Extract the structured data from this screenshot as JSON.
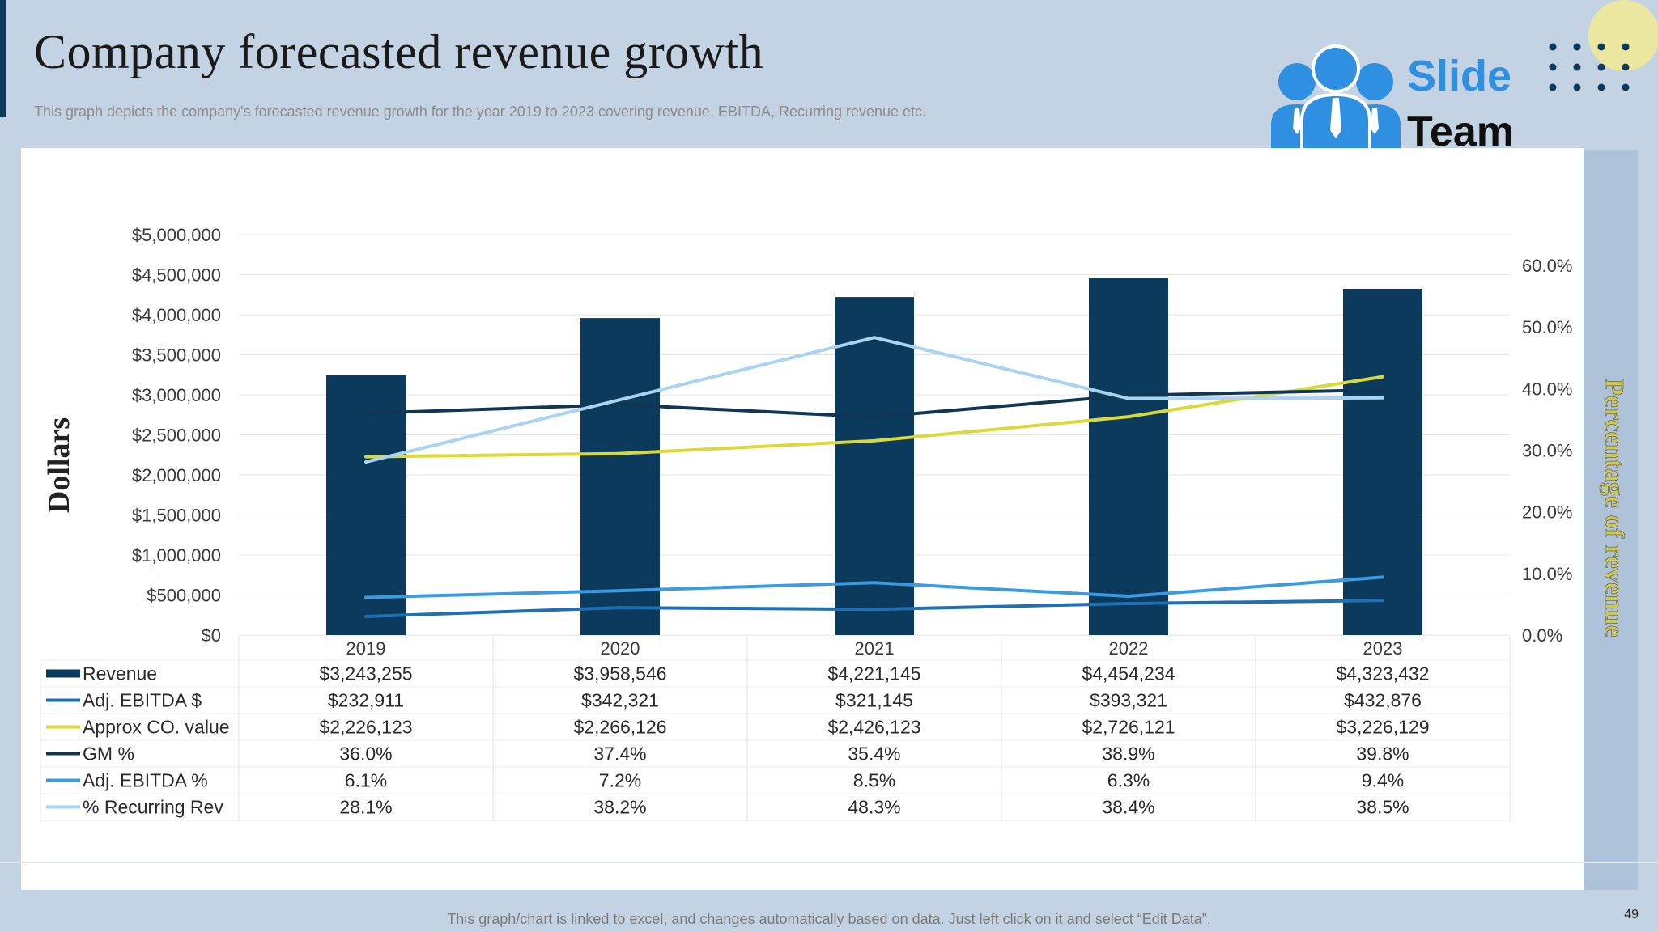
{
  "slide": {
    "title": "Company forecasted revenue growth",
    "subtitle": "This graph depicts the company's forecasted revenue growth for the year 2019 to  2023 covering revenue, EBITDA,  Recurring revenue etc.",
    "footer_note": "This graph/chart is linked to excel,  and changes automatically based on data. Just left click on it and select “Edit Data”.",
    "page_number": "49"
  },
  "logo": {
    "word1": "Slide",
    "word2": "Team"
  },
  "colors": {
    "background": "#c4d3e4",
    "revenue": "#0b3a5c",
    "adj_ebitda_dollar": "#1f6fb2",
    "approx_co_value": "#d9d93a",
    "gm_pct": "#0f3654",
    "adj_ebitda_pct": "#3b9ae0",
    "recurring_rev": "#a9d3f0"
  },
  "chart_data": {
    "type": "bar+line",
    "categories": [
      "2019",
      "2020",
      "2021",
      "2022",
      "2023"
    ],
    "y_left": {
      "label": "Dollars",
      "range": [
        0,
        5000000
      ],
      "ticks": [
        "$0",
        "$500,000",
        "$1,000,000",
        "$1,500,000",
        "$2,000,000",
        "$2,500,000",
        "$3,000,000",
        "$3,500,000",
        "$4,000,000",
        "$4,500,000",
        "$5,000,000"
      ]
    },
    "y_right": {
      "label": "Percentage of revenue",
      "range": [
        0,
        0.65
      ],
      "ticks": [
        "0.0%",
        "10.0%",
        "20.0%",
        "30.0%",
        "40.0%",
        "50.0%",
        "60.0%"
      ]
    },
    "series": [
      {
        "name": "Revenue",
        "type": "bar",
        "axis": "left",
        "color_key": "revenue",
        "values": [
          3243255,
          3958546,
          4221145,
          4454234,
          4323432
        ],
        "labels": [
          "$3,243,255",
          "$3,958,546",
          "$4,221,145",
          "$4,454,234",
          "$4,323,432"
        ]
      },
      {
        "name": "Adj. EBITDA $",
        "type": "line",
        "axis": "left",
        "color_key": "adj_ebitda_dollar",
        "values": [
          232911,
          342321,
          321145,
          393321,
          432876
        ],
        "labels": [
          "$232,911",
          "$342,321",
          "$321,145",
          "$393,321",
          "$432,876"
        ]
      },
      {
        "name": "Approx CO. value",
        "type": "line",
        "axis": "left",
        "color_key": "approx_co_value",
        "values": [
          2226123,
          2266126,
          2426123,
          2726121,
          3226129
        ],
        "labels": [
          "$2,226,123",
          "$2,266,126",
          "$2,426,123",
          "$2,726,121",
          "$3,226,129"
        ]
      },
      {
        "name": "GM %",
        "type": "line",
        "axis": "right",
        "color_key": "gm_pct",
        "values": [
          0.36,
          0.374,
          0.354,
          0.389,
          0.398
        ],
        "labels": [
          "36.0%",
          "37.4%",
          "35.4%",
          "38.9%",
          "39.8%"
        ]
      },
      {
        "name": "Adj. EBITDA %",
        "type": "line",
        "axis": "right",
        "color_key": "adj_ebitda_pct",
        "values": [
          0.061,
          0.072,
          0.085,
          0.063,
          0.094
        ],
        "labels": [
          "6.1%",
          "7.2%",
          "8.5%",
          "6.3%",
          "9.4%"
        ]
      },
      {
        "name": "% Recurring Rev",
        "type": "line",
        "axis": "right",
        "color_key": "recurring_rev",
        "values": [
          0.281,
          0.382,
          0.483,
          0.384,
          0.385
        ],
        "labels": [
          "28.1%",
          "38.2%",
          "48.3%",
          "38.4%",
          "38.5%"
        ]
      }
    ]
  }
}
